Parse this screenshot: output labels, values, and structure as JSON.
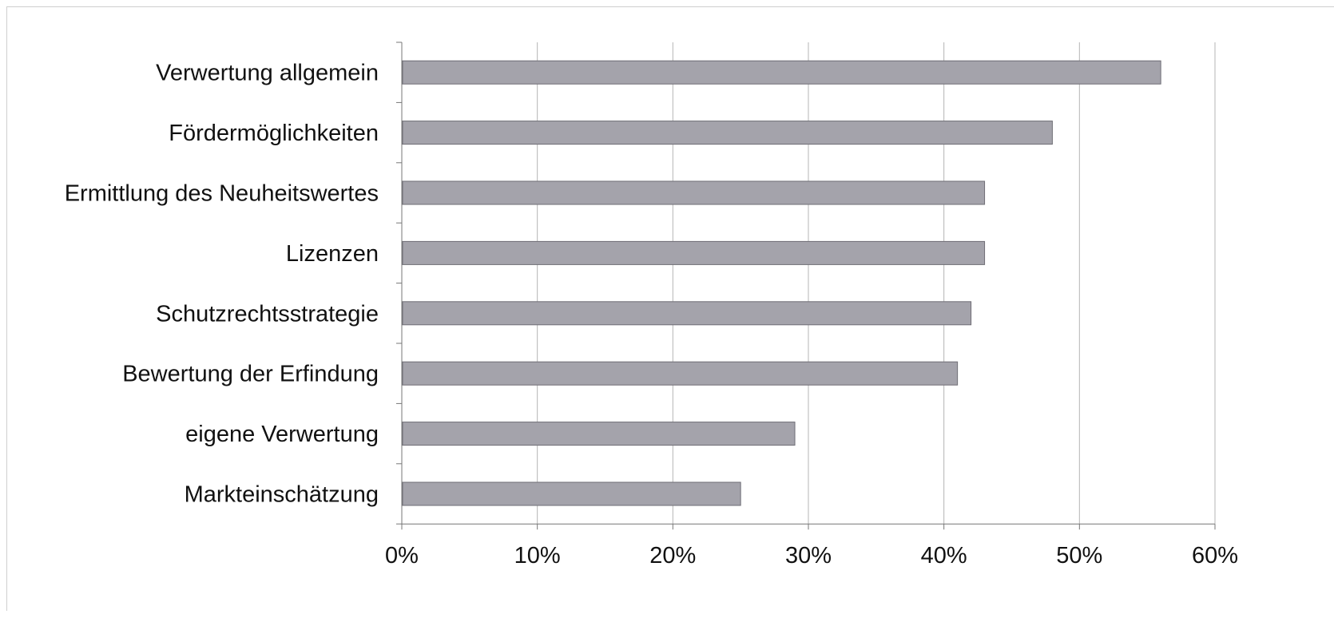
{
  "chart_data": {
    "type": "bar",
    "orientation": "horizontal",
    "categories": [
      "Verwertung allgemein",
      "Fördermöglichkeiten",
      "Ermittlung des Neuheitswertes",
      "Lizenzen",
      "Schutzrechtsstrategie",
      "Bewertung der Erfindung",
      "eigene Verwertung",
      "Markteinschätzung"
    ],
    "values": [
      56,
      48,
      43,
      43,
      42,
      41,
      29,
      25
    ],
    "xlim": [
      0,
      60
    ],
    "x_ticks": [
      "0%",
      "10%",
      "20%",
      "30%",
      "40%",
      "50%",
      "60%"
    ],
    "grid": true,
    "bar_color": "#a4a3ab",
    "bar_edge_color": "#6e6d75"
  }
}
